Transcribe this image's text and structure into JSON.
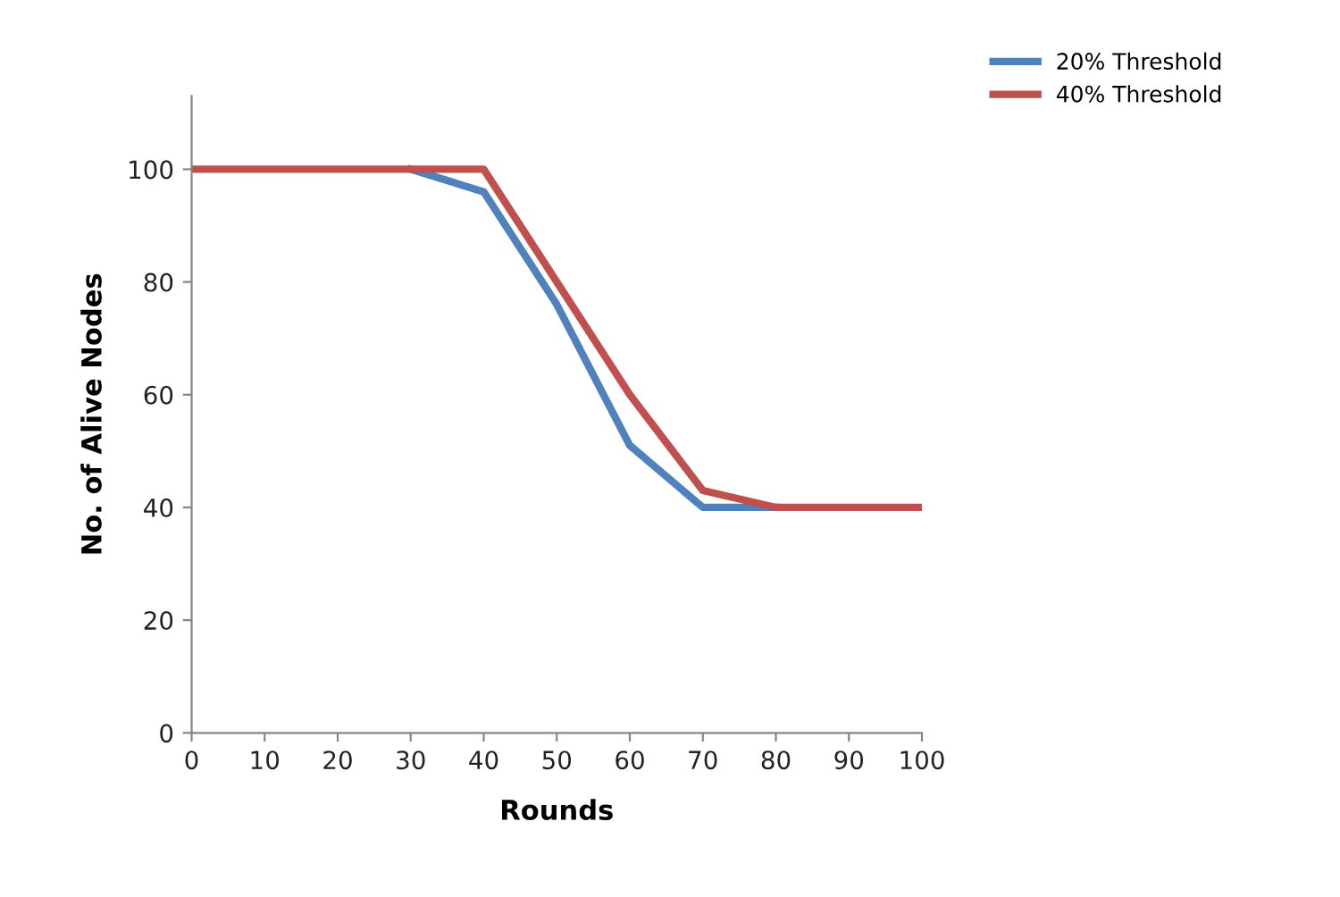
{
  "chart_data": {
    "type": "line",
    "xlabel": "Rounds",
    "ylabel": "No. of Alive Nodes",
    "x": [
      0,
      10,
      20,
      30,
      40,
      50,
      60,
      70,
      80,
      90,
      100
    ],
    "series": [
      {
        "name": "20% Threshold",
        "color": "#4f81bd",
        "values": [
          null,
          null,
          null,
          100,
          96,
          76,
          51,
          40,
          40,
          null,
          null
        ]
      },
      {
        "name": "40% Threshold",
        "color": "#c0504d",
        "values": [
          100,
          100,
          100,
          100,
          100,
          80,
          60,
          43,
          40,
          40,
          40
        ]
      }
    ],
    "xlim": [
      0,
      100
    ],
    "xticks": [
      0,
      10,
      20,
      30,
      40,
      50,
      60,
      70,
      80,
      90,
      100
    ],
    "ylim": [
      0,
      113
    ],
    "yticks": [
      0,
      20,
      40,
      60,
      80,
      100
    ],
    "grid": false,
    "legend": "top right",
    "marker": "none",
    "line_style": "solid"
  }
}
